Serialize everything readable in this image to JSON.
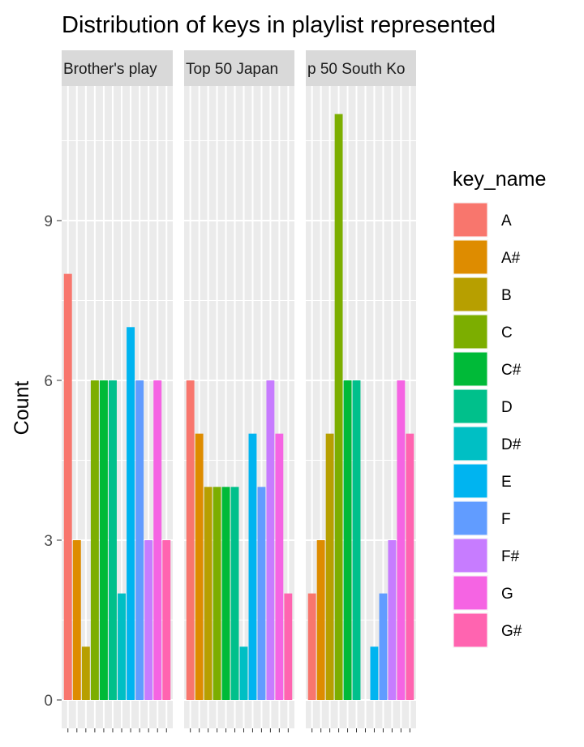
{
  "chart_data": {
    "type": "bar",
    "title": "Distribution of keys in playlist represented",
    "xlabel": "",
    "ylabel": "Count",
    "ylim": [
      0,
      11.6
    ],
    "yticks": [
      0,
      3,
      6,
      9
    ],
    "grid": true,
    "legend": {
      "title": "key_name",
      "position": "right",
      "keys": [
        "A",
        "A#",
        "B",
        "C",
        "C#",
        "D",
        "D#",
        "E",
        "F",
        "F#",
        "G",
        "G#"
      ],
      "colors": [
        "#F8766D",
        "#DE8C00",
        "#B79F00",
        "#7CAE00",
        "#00BA38",
        "#00C08B",
        "#00BFC4",
        "#00B4F0",
        "#619CFF",
        "#C77CFF",
        "#F564E3",
        "#FF64B0"
      ]
    },
    "panels": [
      {
        "label": "Brother's play",
        "values": [
          8,
          3,
          1,
          6,
          6,
          6,
          2,
          7,
          6,
          3,
          6,
          3
        ]
      },
      {
        "label": "Top 50 Japan",
        "values": [
          6,
          5,
          4,
          4,
          4,
          4,
          1,
          5,
          4,
          6,
          5,
          2
        ]
      },
      {
        "label": "p 50 South Ko",
        "values": [
          2,
          3,
          5,
          11,
          6,
          6,
          0,
          1,
          2,
          3,
          6,
          5
        ]
      }
    ]
  }
}
